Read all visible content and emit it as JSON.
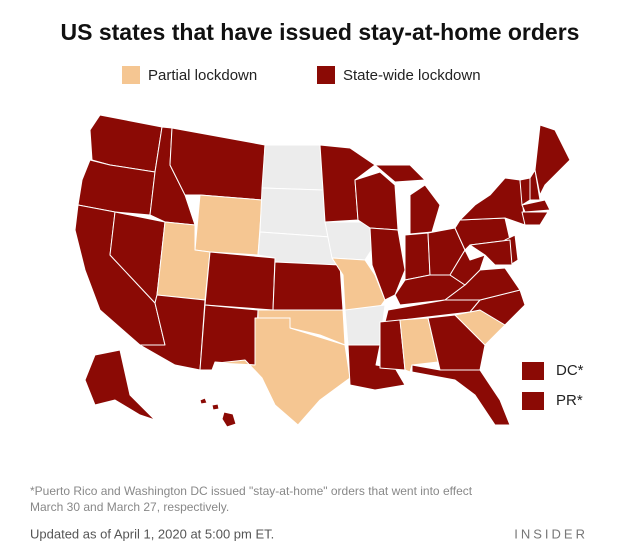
{
  "title": "US states that have issued stay-at-home orders",
  "legend": [
    {
      "label": "Partial lockdown",
      "color": "#f5c692"
    },
    {
      "label": "State-wide lockdown",
      "color": "#8b0a05"
    }
  ],
  "territories": [
    "DC*",
    "PR*"
  ],
  "footnote": [
    "*Puerto Rico and Washington DC issued \"stay-at-home\" orders that went into effect",
    "March 30 and March 27, respectively."
  ],
  "updated": "Updated as of April 1, 2020 at 5:00 pm ET.",
  "brand": "INSIDER"
}
